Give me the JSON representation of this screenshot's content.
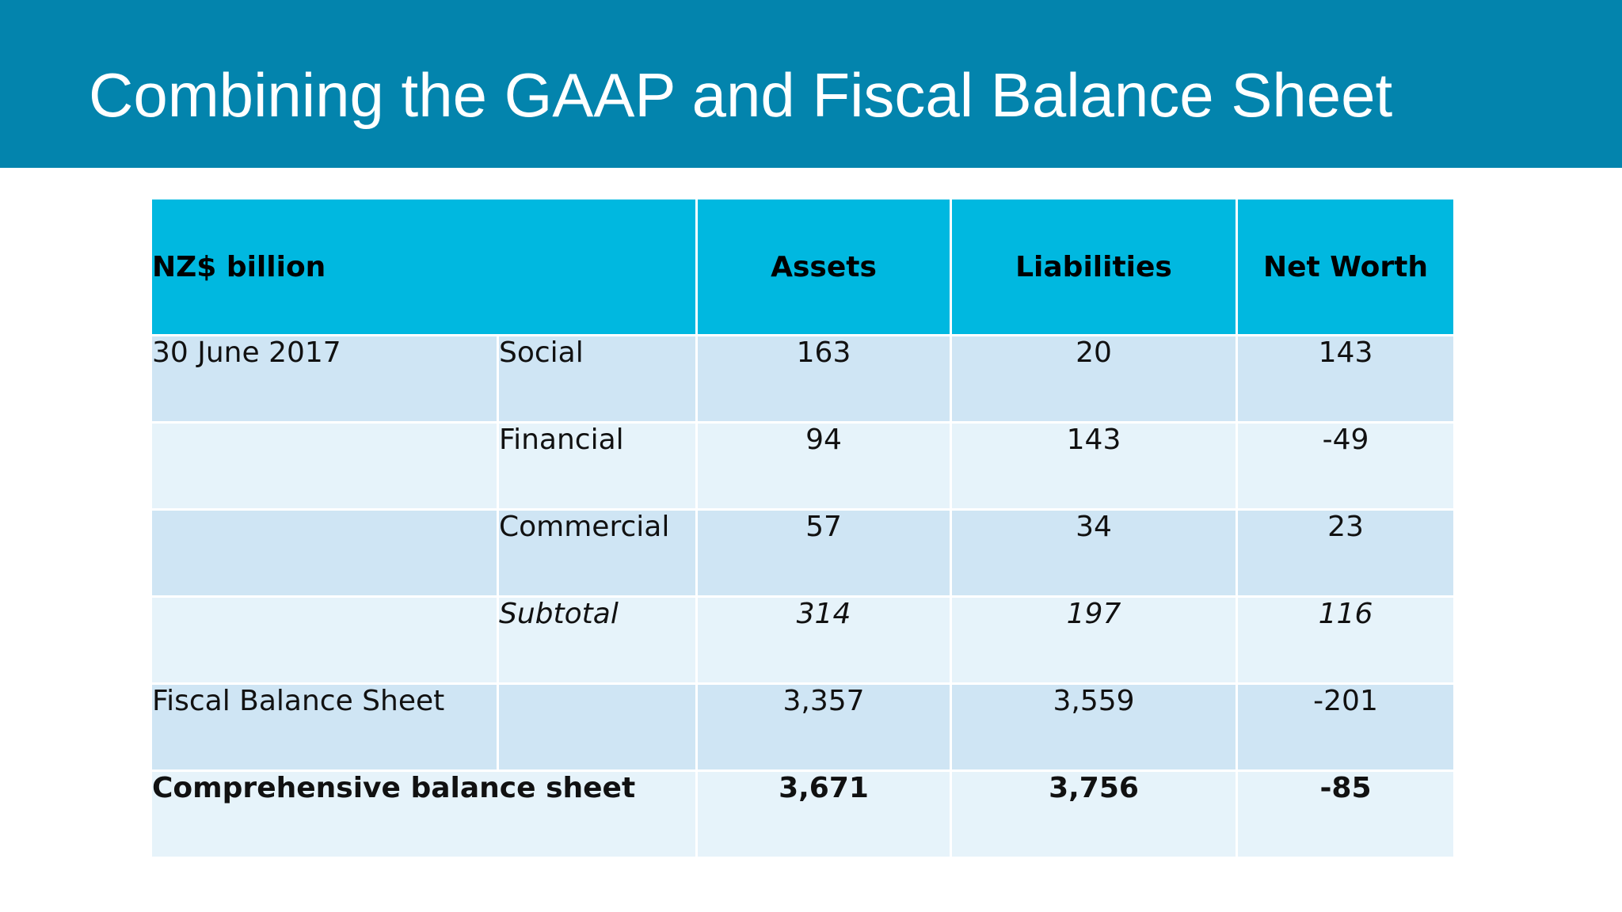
{
  "slide": {
    "title": "Combining the GAAP and Fiscal Balance Sheet"
  },
  "table": {
    "header": {
      "unit": "NZ$ billion",
      "assets": "Assets",
      "liabilities": "Liabilities",
      "net_worth": "Net Worth"
    },
    "rows": [
      {
        "group": "30 June 2017",
        "sub": "Social",
        "assets": "163",
        "liabilities": "20",
        "net_worth": "143"
      },
      {
        "group": "",
        "sub": "Financial",
        "assets": "94",
        "liabilities": "143",
        "net_worth": "-49"
      },
      {
        "group": "",
        "sub": "Commercial",
        "assets": "57",
        "liabilities": "34",
        "net_worth": "23"
      },
      {
        "group": "",
        "sub": "Subtotal",
        "assets": "314",
        "liabilities": "197",
        "net_worth": "116"
      },
      {
        "group": "Fiscal Balance Sheet",
        "sub": "",
        "assets": "3,357",
        "liabilities": "3,559",
        "net_worth": "-201"
      }
    ],
    "total": {
      "label": "Comprehensive balance sheet",
      "assets": "3,671",
      "liabilities": "3,756",
      "net_worth": "-85"
    }
  },
  "colors": {
    "header_bar": "#0384ad",
    "table_header": "#00b8e0",
    "row_dark": "#cfe5f4",
    "row_light": "#e6f3fa"
  }
}
